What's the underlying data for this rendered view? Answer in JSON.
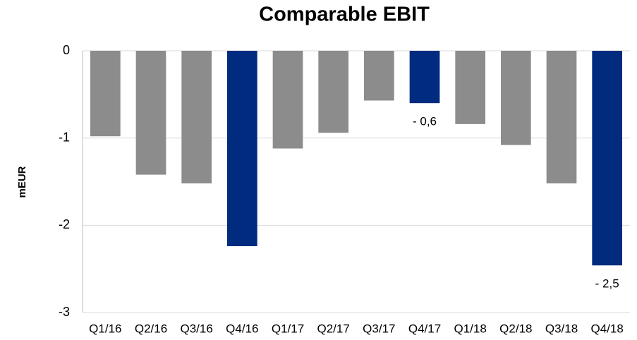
{
  "chart_data": {
    "type": "bar",
    "title": "Comparable EBIT",
    "ylabel": "mEUR",
    "categories": [
      "Q1/16",
      "Q2/16",
      "Q3/16",
      "Q4/16",
      "Q1/17",
      "Q2/17",
      "Q3/17",
      "Q4/17",
      "Q1/18",
      "Q2/18",
      "Q3/18",
      "Q4/18"
    ],
    "values": [
      -0.98,
      -1.42,
      -1.52,
      -2.24,
      -1.12,
      -0.94,
      -0.57,
      -0.6,
      -0.84,
      -1.08,
      -1.52,
      -2.46
    ],
    "value_labels": [
      null,
      null,
      null,
      null,
      null,
      null,
      null,
      "- 0,6",
      null,
      null,
      null,
      "- 2,5"
    ],
    "colors": [
      "#8c8c8c",
      "#8c8c8c",
      "#8c8c8c",
      "#002b7f",
      "#8c8c8c",
      "#8c8c8c",
      "#8c8c8c",
      "#002b7f",
      "#8c8c8c",
      "#8c8c8c",
      "#8c8c8c",
      "#002b7f"
    ],
    "ylim": [
      -3,
      0
    ],
    "yticks": [
      0,
      -1,
      -2,
      -3
    ],
    "grid": true
  }
}
